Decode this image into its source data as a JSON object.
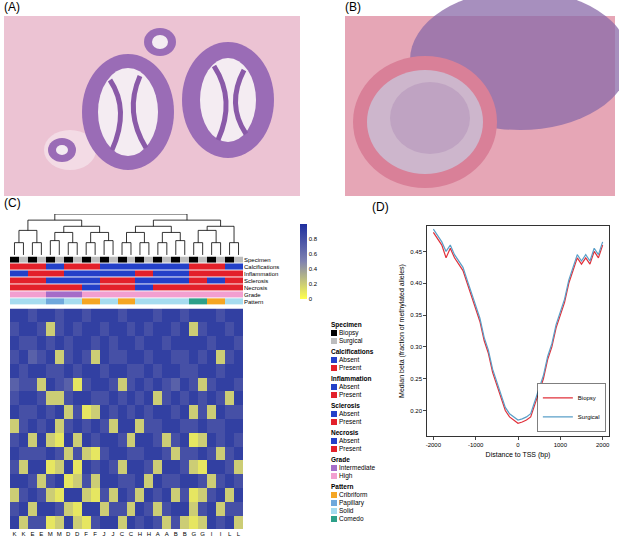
{
  "panel_labels": [
    "(A)",
    "(B)",
    "(C)",
    "(D)"
  ],
  "chart_data": [
    {
      "type": "heatmap",
      "categories": [
        "K",
        "K",
        "E",
        "E",
        "M",
        "M",
        "D",
        "D",
        "F",
        "F",
        "J",
        "J",
        "C",
        "C",
        "H",
        "H",
        "A",
        "A",
        "B",
        "B",
        "G",
        "G",
        "I",
        "I",
        "L",
        "L"
      ],
      "tick_labels": "x",
      "cells": [
        [
          0.9,
          0.9,
          0.8,
          0.9,
          0.9,
          0.8,
          0.9,
          0.9,
          0.8,
          0.9,
          0.9,
          0.9,
          0.8,
          0.9,
          0.9,
          0.9,
          0.8,
          0.9,
          0.9,
          0.8,
          0.9,
          0.9,
          0.9,
          0.8,
          0.9,
          0.9
        ],
        [
          0.8,
          0.9,
          0.9,
          0.8,
          0.2,
          0.8,
          0.9,
          0.8,
          0.9,
          0.9,
          0.8,
          0.9,
          0.9,
          0.8,
          0.9,
          0.8,
          0.9,
          0.9,
          0.8,
          0.9,
          0.2,
          0.8,
          0.9,
          0.9,
          0.8,
          0.9
        ],
        [
          0.9,
          0.8,
          0.8,
          0.9,
          0.8,
          0.9,
          0.8,
          0.9,
          0.9,
          0.8,
          0.9,
          0.8,
          0.9,
          0.9,
          0.8,
          0.9,
          0.9,
          0.8,
          0.9,
          0.9,
          0.9,
          0.9,
          0.8,
          0.9,
          0.9,
          0.8
        ],
        [
          0.8,
          0.9,
          0.7,
          0.8,
          0.9,
          0.2,
          0.8,
          0.9,
          0.8,
          0.2,
          0.9,
          0.8,
          0.8,
          0.9,
          0.9,
          0.8,
          0.9,
          0.9,
          0.8,
          0.8,
          0.9,
          0.8,
          0.9,
          0.2,
          0.8,
          0.9
        ],
        [
          0.9,
          0.8,
          0.9,
          0.9,
          0.8,
          0.8,
          0.9,
          0.8,
          0.9,
          0.9,
          0.8,
          0.9,
          0.9,
          0.8,
          0.8,
          0.9,
          0.8,
          0.9,
          0.9,
          0.8,
          0.8,
          0.9,
          0.9,
          0.8,
          0.9,
          0.9
        ],
        [
          0.7,
          0.8,
          0.8,
          0.2,
          0.9,
          0.8,
          0.7,
          0.1,
          0.8,
          0.9,
          0.9,
          0.8,
          0.2,
          0.8,
          0.9,
          0.8,
          0.9,
          0.8,
          0.7,
          0.9,
          0.8,
          0.2,
          0.8,
          0.9,
          0.9,
          0.8
        ],
        [
          0.8,
          0.9,
          0.9,
          0.8,
          0.2,
          0.2,
          0.8,
          0.9,
          0.9,
          0.8,
          0.8,
          0.9,
          0.8,
          0.9,
          0.8,
          0.9,
          0.2,
          0.8,
          0.9,
          0.8,
          0.9,
          0.8,
          0.9,
          0.8,
          0.2,
          0.9
        ],
        [
          0.9,
          0.8,
          0.8,
          0.9,
          0.8,
          0.9,
          0.2,
          0.8,
          0.1,
          0.2,
          0.9,
          0.8,
          0.9,
          0.8,
          0.9,
          0.8,
          0.9,
          0.9,
          0.8,
          0.9,
          0.2,
          0.8,
          0.2,
          0.9,
          0.8,
          0.8
        ],
        [
          0.2,
          0.8,
          0.9,
          0.8,
          0.9,
          0.2,
          0.8,
          0.9,
          0.8,
          0.9,
          0.8,
          0.2,
          0.9,
          0.9,
          0.2,
          0.8,
          0.8,
          0.9,
          0.9,
          0.8,
          0.8,
          0.9,
          0.8,
          0.8,
          0.9,
          0.9
        ],
        [
          0.8,
          0.9,
          0.2,
          0.9,
          0.2,
          0.1,
          0.9,
          0.2,
          0.9,
          0.8,
          0.9,
          0.9,
          0.8,
          0.2,
          0.9,
          0.9,
          0.8,
          0.2,
          0.8,
          0.9,
          0.1,
          0.2,
          0.9,
          0.8,
          0.9,
          0.8
        ],
        [
          0.9,
          0.8,
          0.8,
          0.8,
          0.9,
          0.8,
          0.2,
          0.8,
          0.2,
          0.1,
          0.8,
          0.9,
          0.9,
          0.8,
          0.8,
          0.9,
          0.9,
          0.8,
          0.2,
          0.8,
          0.8,
          0.9,
          0.8,
          0.2,
          0.8,
          0.9
        ],
        [
          0.8,
          0.2,
          0.9,
          0.9,
          0.1,
          0.2,
          0.9,
          0.1,
          0.9,
          0.8,
          0.9,
          0.8,
          0.2,
          0.9,
          0.9,
          0.8,
          0.2,
          0.9,
          0.9,
          0.8,
          0.2,
          0.1,
          0.9,
          0.9,
          0.8,
          0.2
        ],
        [
          0.9,
          0.9,
          0.8,
          0.2,
          0.8,
          0.9,
          0.1,
          0.2,
          0.8,
          0.2,
          0.9,
          0.9,
          0.8,
          0.8,
          0.9,
          0.2,
          0.9,
          0.8,
          0.8,
          0.9,
          0.9,
          0.8,
          0.2,
          0.8,
          0.9,
          0.8
        ],
        [
          0.2,
          0.8,
          0.9,
          0.8,
          0.2,
          0.1,
          0.9,
          0.9,
          0.2,
          0.1,
          0.8,
          0.2,
          0.9,
          0.8,
          0.2,
          0.9,
          0.8,
          0.9,
          0.2,
          0.8,
          0.1,
          0.2,
          0.8,
          0.9,
          0.2,
          0.9
        ],
        [
          0.8,
          0.9,
          0.2,
          0.9,
          0.9,
          0.8,
          0.2,
          0.1,
          0.9,
          0.9,
          0.2,
          0.8,
          0.8,
          0.2,
          0.9,
          0.8,
          0.2,
          0.8,
          0.9,
          0.9,
          0.2,
          0.8,
          0.9,
          0.2,
          0.8,
          0.8
        ],
        [
          0.9,
          0.2,
          0.8,
          0.8,
          0.1,
          0.2,
          0.9,
          0.2,
          0.1,
          0.8,
          0.9,
          0.9,
          0.2,
          0.9,
          0.8,
          0.9,
          0.8,
          0.2,
          0.8,
          0.2,
          0.1,
          0.2,
          0.9,
          0.8,
          0.9,
          0.2
        ]
      ],
      "colorbar": {
        "range": [
          0,
          1
        ],
        "ticks": [
          0,
          0.2,
          0.4,
          0.6,
          0.8
        ],
        "colors": [
          "#ffff4d",
          "#8082b0",
          "#1f2f9f"
        ]
      },
      "dendrogram": [
        [
          0,
          1,
          0.3
        ],
        [
          2,
          3,
          0.3
        ],
        [
          4,
          5,
          0.35
        ],
        [
          6,
          7,
          0.3
        ],
        [
          8,
          9,
          0.3
        ],
        [
          10,
          11,
          0.35
        ],
        [
          12,
          13,
          0.3
        ],
        [
          14,
          15,
          0.3
        ],
        [
          16,
          17,
          0.3
        ],
        [
          18,
          19,
          0.35
        ],
        [
          20,
          21,
          0.3
        ],
        [
          22,
          23,
          0.3
        ],
        [
          24,
          25,
          0.3
        ],
        [
          26,
          27,
          0.6
        ],
        [
          28,
          29,
          0.55
        ],
        [
          30,
          31,
          0.55
        ],
        [
          40,
          41,
          0.7
        ],
        [
          39,
          42,
          0.85
        ],
        [
          32,
          33,
          0.55
        ],
        [
          34,
          35,
          0.55
        ],
        [
          44,
          45,
          0.7
        ],
        [
          36,
          37,
          0.6
        ],
        [
          47,
          38,
          0.7
        ],
        [
          46,
          48,
          0.85
        ],
        [
          43,
          49,
          1.0
        ]
      ],
      "annotations": [
        {
          "name": "Specimen",
          "levels": [
            {
              "name": "Biopsy",
              "color": "#000000"
            },
            {
              "name": "Surgical",
              "color": "#bdbdbd"
            }
          ],
          "values": [
            "Biopsy",
            "Surgical",
            "Biopsy",
            "Surgical",
            "Biopsy",
            "Surgical",
            "Biopsy",
            "Surgical",
            "Biopsy",
            "Surgical",
            "Biopsy",
            "Surgical",
            "Biopsy",
            "Surgical",
            "Biopsy",
            "Surgical",
            "Biopsy",
            "Surgical",
            "Biopsy",
            "Surgical",
            "Biopsy",
            "Surgical",
            "Biopsy",
            "Surgical",
            "Biopsy",
            "Surgical"
          ]
        },
        {
          "name": "Calcifications",
          "levels": [
            {
              "name": "Absent",
              "color": "#2340c8"
            },
            {
              "name": "Present",
              "color": "#e3202a"
            }
          ],
          "values": [
            "Present",
            "Present",
            "Present",
            "Present",
            "Absent",
            "Absent",
            "Present",
            "Present",
            "Present",
            "Present",
            "Absent",
            "Absent",
            "Absent",
            "Absent",
            "Absent",
            "Absent",
            "Absent",
            "Absent",
            "Absent",
            "Absent",
            "Present",
            "Present",
            "Present",
            "Present",
            "Absent",
            "Absent"
          ]
        },
        {
          "name": "Inflammation",
          "levels": [
            {
              "name": "Absent",
              "color": "#2340c8"
            },
            {
              "name": "Present",
              "color": "#e3202a"
            }
          ],
          "values": [
            "Absent",
            "Absent",
            "Present",
            "Present",
            "Present",
            "Present",
            "Absent",
            "Absent",
            "Absent",
            "Absent",
            "Absent",
            "Absent",
            "Absent",
            "Absent",
            "Present",
            "Present",
            "Absent",
            "Absent",
            "Absent",
            "Absent",
            "Present",
            "Present",
            "Present",
            "Present",
            "Present",
            "Present"
          ]
        },
        {
          "name": "Sclerosis",
          "levels": [
            {
              "name": "Absent",
              "color": "#2340c8"
            },
            {
              "name": "Present",
              "color": "#e3202a"
            }
          ],
          "values": [
            "Present",
            "Present",
            "Present",
            "Present",
            "Absent",
            "Absent",
            "Absent",
            "Absent",
            "Absent",
            "Absent",
            "Present",
            "Present",
            "Present",
            "Present",
            "Absent",
            "Absent",
            "Absent",
            "Absent",
            "Absent",
            "Absent",
            "Present",
            "Present",
            "Absent",
            "Absent",
            "Present",
            "Present"
          ]
        },
        {
          "name": "Necrosis",
          "levels": [
            {
              "name": "Absent",
              "color": "#2340c8"
            },
            {
              "name": "Present",
              "color": "#e3202a"
            }
          ],
          "values": [
            "Present",
            "Present",
            "Present",
            "Present",
            "Present",
            "Present",
            "Present",
            "Present",
            "Absent",
            "Absent",
            "Present",
            "Present",
            "Present",
            "Present",
            "Absent",
            "Absent",
            "Present",
            "Present",
            "Present",
            "Present",
            "Present",
            "Present",
            "Present",
            "Present",
            "Present",
            "Present"
          ]
        },
        {
          "name": "Grade",
          "levels": [
            {
              "name": "Intermediate",
              "color": "#a56cc8"
            },
            {
              "name": "High",
              "color": "#f29fd0"
            }
          ],
          "values": [
            "High",
            "High",
            "High",
            "High",
            "Intermediate",
            "Intermediate",
            "Intermediate",
            "Intermediate",
            "High",
            "High",
            "High",
            "High",
            "High",
            "High",
            "High",
            "High",
            "High",
            "High",
            "High",
            "High",
            "High",
            "High",
            "High",
            "High",
            "High",
            "High"
          ]
        },
        {
          "name": "Pattern",
          "levels": [
            {
              "name": "Cribriform",
              "color": "#f5a623"
            },
            {
              "name": "Papillary",
              "color": "#6fa8dc"
            },
            {
              "name": "Solid",
              "color": "#a6dcef"
            },
            {
              "name": "Comedo",
              "color": "#2ca089"
            }
          ],
          "values": [
            "Solid",
            "Solid",
            "Solid",
            "Solid",
            "Papillary",
            "Papillary",
            "Solid",
            "Solid",
            "Cribriform",
            "Cribriform",
            "Solid",
            "Solid",
            "Cribriform",
            "Cribriform",
            "Solid",
            "Solid",
            "Solid",
            "Solid",
            "Solid",
            "Solid",
            "Comedo",
            "Comedo",
            "Cribriform",
            "Cribriform",
            "Solid",
            "Solid"
          ]
        }
      ]
    },
    {
      "type": "line",
      "x_label": "Distance to TSS (bp)",
      "y_label": "Median beta (fraction of methylated alleles)",
      "x": [
        -2000,
        -1900,
        -1800,
        -1700,
        -1600,
        -1500,
        -1400,
        -1300,
        -1200,
        -1100,
        -1000,
        -900,
        -800,
        -700,
        -600,
        -500,
        -400,
        -300,
        -200,
        -100,
        0,
        100,
        200,
        300,
        400,
        500,
        600,
        700,
        800,
        900,
        1000,
        1100,
        1200,
        1300,
        1400,
        1500,
        1600,
        1700,
        1800,
        1900,
        2000
      ],
      "series": [
        {
          "name": "Biopsy",
          "color": "#e0303a",
          "values": [
            0.48,
            0.47,
            0.46,
            0.44,
            0.455,
            0.44,
            0.43,
            0.42,
            0.4,
            0.38,
            0.36,
            0.34,
            0.31,
            0.29,
            0.26,
            0.24,
            0.22,
            0.2,
            0.19,
            0.185,
            0.18,
            0.182,
            0.185,
            0.19,
            0.21,
            0.23,
            0.25,
            0.28,
            0.3,
            0.33,
            0.35,
            0.37,
            0.4,
            0.42,
            0.44,
            0.43,
            0.44,
            0.43,
            0.45,
            0.44,
            0.46
          ]
        },
        {
          "name": "Surgical",
          "color": "#5a9fc8",
          "values": [
            0.485,
            0.475,
            0.465,
            0.45,
            0.46,
            0.445,
            0.435,
            0.425,
            0.405,
            0.385,
            0.365,
            0.345,
            0.315,
            0.295,
            0.265,
            0.245,
            0.225,
            0.205,
            0.195,
            0.19,
            0.185,
            0.187,
            0.19,
            0.195,
            0.215,
            0.235,
            0.255,
            0.285,
            0.305,
            0.335,
            0.355,
            0.375,
            0.405,
            0.425,
            0.445,
            0.435,
            0.445,
            0.435,
            0.455,
            0.445,
            0.465
          ]
        }
      ],
      "xlim": [
        -2150,
        2150
      ],
      "xticks": [
        -2000,
        -1000,
        0,
        1000,
        2000
      ],
      "ylim": [
        0.16,
        0.49
      ],
      "yticks": [
        {
          "value": 0.2,
          "label": "0.20"
        },
        0.25,
        {
          "value": 0.3,
          "label": "0.30"
        },
        0.35,
        {
          "value": 0.4,
          "label": "0.40"
        },
        0.45
      ],
      "grid": false,
      "legend": "bottom right"
    }
  ]
}
